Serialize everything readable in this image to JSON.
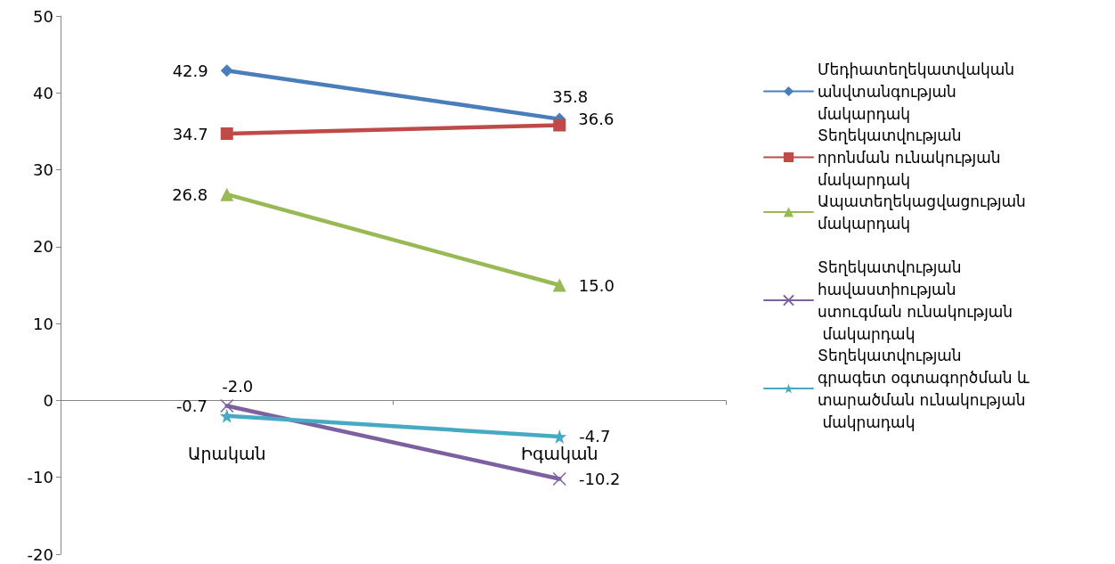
{
  "chart_data": {
    "type": "line",
    "categories": [
      "Արական",
      "Իգական"
    ],
    "series": [
      {
        "name": "Մեդիատեղեկատվական անվտանգության մակարդակ",
        "color": "#4a7ebb",
        "marker": "diamond",
        "values": [
          42.9,
          36.6
        ],
        "value_labels": [
          "42.9",
          "36.6"
        ]
      },
      {
        "name": "Տեղեկատվության որոնման ունակության մակարդակ",
        "color": "#be4b48",
        "marker": "square",
        "values": [
          34.7,
          35.8
        ],
        "value_labels": [
          "34.7",
          "35.8"
        ]
      },
      {
        "name": "Ապատեղեկացվացության մակարդակ",
        "color": "#98b954",
        "marker": "triangle",
        "values": [
          26.8,
          15.0
        ],
        "value_labels": [
          "26.8",
          "15.0"
        ]
      },
      {
        "name": "Տեղեկատվության հավաստիության ստուգման ունակության մակարդակ",
        "color": "#7d60a0",
        "marker": "cross",
        "values": [
          -0.7,
          -10.2
        ],
        "value_labels": [
          "-0.7",
          "-10.2"
        ]
      },
      {
        "name": "Տեղեկատվության գրագետ օգտագործման և տարածման ունակության մակրադակ",
        "color": "#46aac5",
        "marker": "star",
        "values": [
          -2.0,
          -4.7
        ],
        "value_labels": [
          "-2.0",
          "-4.7"
        ]
      }
    ],
    "ylim": [
      -20,
      50
    ],
    "yticks": [
      -20,
      -10,
      0,
      10,
      20,
      30,
      40,
      50
    ],
    "grid": false,
    "legend": "right"
  }
}
